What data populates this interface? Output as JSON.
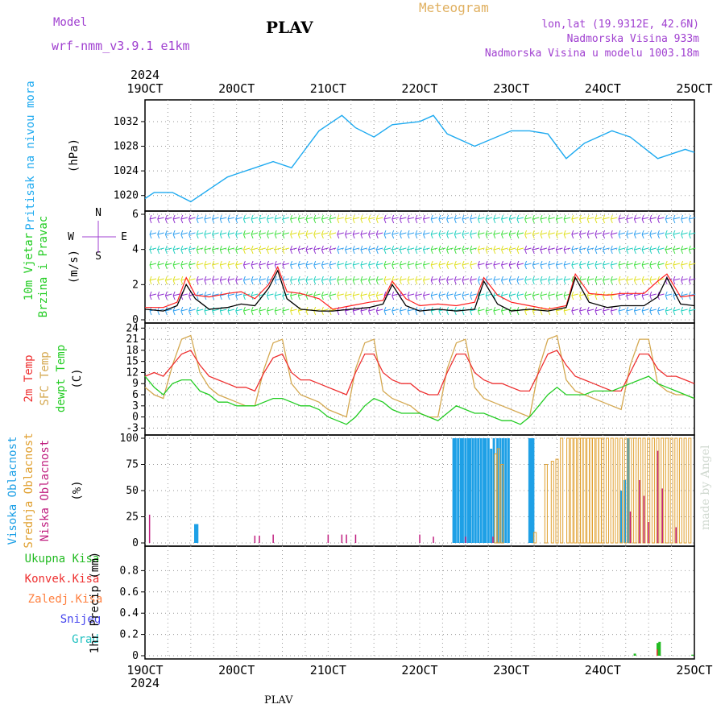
{
  "header": {
    "model_label": "Model",
    "model_name": "wrf-nmm_v3.9.1  e1km",
    "station": "PLAV",
    "meteogram": "Meteogram",
    "lonlat": "lon,lat (19.9312E, 42.6N)",
    "elevation": "Nadmorska Visina 933m",
    "model_elevation": "Nadmorska Visina u modelu 1003.18m",
    "made_by": "made by Angel",
    "footer_station": "PLAV"
  },
  "time_axis": {
    "year": "2024",
    "labels": [
      "19OCT",
      "20OCT",
      "21OCT",
      "22OCT",
      "23OCT",
      "24OCT",
      "25OCT"
    ],
    "days": [
      0,
      1,
      2,
      3,
      4,
      5,
      6
    ]
  },
  "colors": {
    "pressure": "#1eaaf0",
    "t2m": "#ee3030",
    "sfc": "#d4a850",
    "dew": "#22cc22",
    "high_cloud": "#1ea0e6",
    "mid_cloud": "#e0a030",
    "low_cloud": "#c02080",
    "total_precip": "#22bb22",
    "conv_precip": "#ee3030",
    "frozen": "#ff8040",
    "snow": "#4444ee",
    "hail": "#20c0c0",
    "wind_speed": "#000000",
    "gust": "#ff2020",
    "direction_legend": "#a040d0",
    "header_purple": "#a040d0",
    "meteogram": "#e0b060"
  },
  "chart_data": [
    {
      "type": "line",
      "panel": "pressure",
      "ylabel_left": "Pritisak na nivou mora",
      "ylabel_unit": "(hPa)",
      "ylim": [
        1018,
        1035
      ],
      "yticks": [
        1020,
        1024,
        1028,
        1032
      ],
      "grid": true,
      "x_days": [
        0,
        0.1,
        0.3,
        0.5,
        0.7,
        0.9,
        1.0,
        1.2,
        1.4,
        1.6,
        1.9,
        2.0,
        2.15,
        2.3,
        2.5,
        2.7,
        3.0,
        3.15,
        3.3,
        3.6,
        4.0,
        4.2,
        4.4,
        4.6,
        4.8,
        5.1,
        5.3,
        5.6,
        5.9,
        6.0
      ],
      "series": [
        {
          "values": [
            1019.5,
            1020.5,
            1020.5,
            1019.0,
            1021.0,
            1023.0,
            1023.5,
            1024.5,
            1025.5,
            1024.5,
            1030.5,
            1031.5,
            1033.0,
            1031.0,
            1029.5,
            1031.5,
            1032.0,
            1033.0,
            1030.0,
            1028.0,
            1030.5,
            1030.5,
            1030.0,
            1026.0,
            1028.5,
            1030.5,
            1029.5,
            1026.0,
            1027.5,
            1027.0
          ]
        }
      ]
    },
    {
      "type": "line",
      "panel": "wind",
      "ylabel_left_a": "10m Vjetar",
      "ylabel_left_b": "Brzina i Pravac",
      "ylabel_unit": "(m/s)",
      "direction_legend": [
        "N",
        "S",
        "W",
        "E"
      ],
      "ylim": [
        0,
        6
      ],
      "yticks": [
        0,
        2,
        4,
        6
      ],
      "grid": true,
      "x_days": [
        0,
        0.2,
        0.35,
        0.45,
        0.55,
        0.7,
        0.9,
        1.05,
        1.2,
        1.35,
        1.45,
        1.55,
        1.7,
        1.9,
        2.05,
        2.25,
        2.45,
        2.6,
        2.7,
        2.85,
        3.0,
        3.2,
        3.4,
        3.6,
        3.7,
        3.85,
        4.0,
        4.2,
        4.4,
        4.6,
        4.7,
        4.85,
        5.05,
        5.2,
        5.45,
        5.6,
        5.7,
        5.85,
        6.0
      ],
      "series": [
        {
          "name": "speed",
          "values": [
            0.6,
            0.5,
            0.8,
            2.0,
            1.2,
            0.6,
            0.7,
            0.9,
            0.8,
            1.8,
            2.8,
            1.2,
            0.6,
            0.5,
            0.5,
            0.6,
            0.7,
            0.9,
            2.0,
            0.8,
            0.5,
            0.6,
            0.5,
            0.6,
            2.2,
            0.9,
            0.5,
            0.6,
            0.5,
            0.7,
            2.4,
            1.0,
            0.7,
            0.8,
            0.8,
            1.3,
            2.4,
            0.9,
            0.8
          ]
        },
        {
          "name": "gust",
          "values": [
            0.7,
            0.7,
            1.0,
            2.4,
            1.4,
            1.3,
            1.5,
            1.6,
            1.2,
            2.0,
            3.0,
            1.6,
            1.5,
            1.2,
            0.6,
            0.8,
            1.0,
            1.1,
            2.2,
            1.2,
            0.8,
            0.9,
            0.8,
            1.0,
            2.4,
            1.4,
            1.0,
            0.8,
            0.6,
            0.8,
            2.6,
            1.5,
            1.4,
            1.5,
            1.5,
            2.2,
            2.6,
            1.3,
            1.4
          ]
        }
      ]
    },
    {
      "type": "line",
      "panel": "temperature",
      "ylabel_left_a": "2m Temp",
      "ylabel_left_b": "SFC Temp",
      "ylabel_left_c": "dewpt Temp",
      "ylabel_unit": "(C)",
      "ylim": [
        -4,
        24.5
      ],
      "yticks": [
        -3,
        0,
        3,
        6,
        9,
        12,
        15,
        18,
        21,
        24
      ],
      "grid": true,
      "x_days": [
        0,
        0.1,
        0.2,
        0.3,
        0.4,
        0.5,
        0.6,
        0.7,
        0.8,
        0.9,
        1.0,
        1.1,
        1.2,
        1.3,
        1.4,
        1.5,
        1.6,
        1.7,
        1.8,
        1.9,
        2.0,
        2.1,
        2.2,
        2.3,
        2.4,
        2.5,
        2.6,
        2.7,
        2.8,
        2.9,
        3.0,
        3.1,
        3.2,
        3.3,
        3.4,
        3.5,
        3.6,
        3.7,
        3.8,
        3.9,
        4.0,
        4.1,
        4.2,
        4.3,
        4.4,
        4.5,
        4.6,
        4.7,
        4.8,
        4.9,
        5.0,
        5.1,
        5.2,
        5.3,
        5.4,
        5.5,
        5.6,
        5.7,
        5.8,
        5.9,
        6.0
      ],
      "series": [
        {
          "name": "t2m",
          "values": [
            11,
            12,
            11,
            14,
            17,
            18,
            14,
            11,
            10,
            9,
            8,
            8,
            7,
            12,
            16,
            17,
            12,
            10,
            10,
            9,
            8,
            7,
            6,
            12,
            17,
            17,
            12,
            10,
            9,
            9,
            7,
            6,
            6,
            12,
            17,
            17,
            12,
            10,
            9,
            9,
            8,
            7,
            7,
            12,
            17,
            18,
            14,
            11,
            10,
            9,
            8,
            7,
            7,
            12,
            17,
            17,
            13,
            11,
            11,
            10,
            9
          ]
        },
        {
          "name": "sfc",
          "values": [
            8,
            6,
            5,
            14,
            21,
            22,
            12,
            8,
            6,
            5,
            4,
            3,
            3,
            13,
            20,
            21,
            9,
            6,
            5,
            4,
            2,
            1,
            0,
            13,
            20,
            21,
            7,
            5,
            4,
            3,
            1,
            0,
            0,
            13,
            20,
            21,
            8,
            5,
            4,
            3,
            2,
            1,
            0,
            13,
            21,
            22,
            10,
            7,
            6,
            5,
            4,
            3,
            2,
            14,
            21,
            21,
            9,
            7,
            6,
            6,
            5
          ]
        },
        {
          "name": "dew",
          "values": [
            11,
            8,
            6,
            9,
            10,
            10,
            7,
            6,
            4,
            4,
            3,
            3,
            3,
            4,
            5,
            5,
            4,
            3,
            3,
            2,
            0,
            -1,
            -2,
            0,
            3,
            5,
            4,
            2,
            1,
            1,
            1,
            0,
            -1,
            1,
            3,
            2,
            1,
            1,
            0,
            -1,
            -1,
            -2,
            0,
            3,
            6,
            8,
            6,
            6,
            6,
            7,
            7,
            7,
            8,
            9,
            10,
            11,
            9,
            8,
            7,
            6,
            5
          ]
        }
      ]
    },
    {
      "type": "bar",
      "panel": "cloud",
      "ylabel_left_a": "Visoka Oblacnost",
      "ylabel_left_b": "Srednja Oblacnost",
      "ylabel_left_c": "Niska Oblacnost",
      "ylabel_unit": "(%)",
      "ylim": [
        0,
        100
      ],
      "yticks": [
        0,
        25,
        50,
        75,
        100
      ],
      "grid": true,
      "high": {
        "x_days": [
          0.55,
          0.57,
          3.37,
          3.39,
          3.42,
          3.45,
          3.47,
          3.5,
          3.53,
          3.55,
          3.58,
          3.61,
          3.64,
          3.67,
          3.7,
          3.72,
          3.75,
          3.78,
          3.81,
          3.85,
          3.88,
          3.91,
          3.94,
          3.97,
          4.2,
          4.22,
          4.24,
          5.2,
          5.24,
          5.28
        ],
        "values": [
          18,
          18,
          100,
          100,
          100,
          100,
          100,
          100,
          100,
          100,
          100,
          100,
          100,
          100,
          100,
          100,
          100,
          90,
          100,
          100,
          100,
          100,
          100,
          100,
          100,
          100,
          100,
          50,
          60,
          100
        ]
      },
      "mid": {
        "x_days": [
          3.83,
          3.86,
          3.9,
          4.26,
          4.38,
          4.45,
          4.5,
          4.55,
          4.62,
          4.66,
          4.7,
          4.74,
          4.77,
          4.8,
          4.84,
          4.87,
          4.9,
          4.94,
          4.97,
          5.0,
          5.05,
          5.1,
          5.15,
          5.2,
          5.25,
          5.3,
          5.35,
          5.4,
          5.45,
          5.5,
          5.55,
          5.6,
          5.65,
          5.7,
          5.75,
          5.8,
          5.85,
          5.9,
          5.95
        ],
        "values": [
          85,
          90,
          75,
          10,
          75,
          78,
          80,
          100,
          100,
          100,
          100,
          100,
          100,
          100,
          100,
          100,
          100,
          100,
          100,
          100,
          100,
          100,
          100,
          100,
          100,
          100,
          100,
          100,
          100,
          100,
          100,
          100,
          100,
          100,
          100,
          100,
          100,
          100,
          100
        ]
      },
      "low": {
        "x_days": [
          0.05,
          1.2,
          1.25,
          1.4,
          2.0,
          2.15,
          2.2,
          2.3,
          3.0,
          3.15,
          3.5,
          3.8,
          5.3,
          5.4,
          5.45,
          5.5,
          5.6,
          5.65,
          5.8
        ],
        "values": [
          27,
          7,
          7,
          8,
          8,
          8,
          8,
          8,
          8,
          6,
          6,
          6,
          30,
          60,
          45,
          20,
          88,
          52,
          15
        ]
      }
    },
    {
      "type": "bar",
      "panel": "precip",
      "ylabel_left": "1hr Precip (mm)",
      "legend": [
        "Ukupna Kisa",
        "Konvek.Kisa",
        "Zaledj.Kisa",
        "Snijeg",
        "Grad"
      ],
      "ylim": [
        0,
        1
      ],
      "yticks": [
        0,
        0.2,
        0.4,
        0.6,
        0.8
      ],
      "grid": true,
      "total": {
        "x_days": [
          5.35,
          5.6,
          5.62,
          5.98
        ],
        "values": [
          0.02,
          0.12,
          0.13,
          0.01
        ]
      },
      "convective": {
        "x_days": [
          5.6
        ],
        "values": [
          0.06
        ]
      }
    }
  ]
}
